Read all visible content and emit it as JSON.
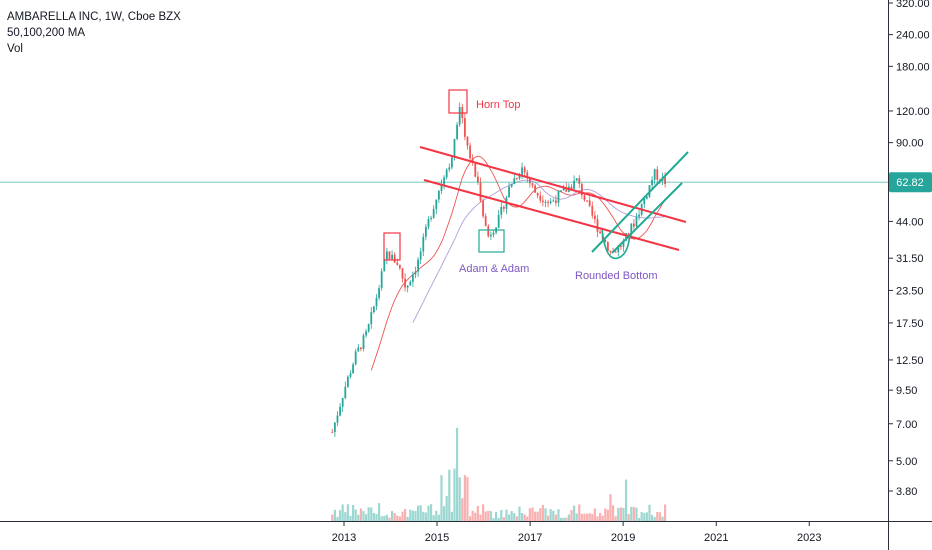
{
  "legend": {
    "symbol_line": "AMBARELLA INC, 1W, Cboe BZX",
    "ma_line": "50,100,200 MA",
    "vol_line": "Vol"
  },
  "price_badge": "62.82",
  "colors": {
    "up": "#26a69a",
    "down": "#ef5350",
    "ma50": "#ef5350",
    "ma100": "#b39ddb",
    "trend_red": "#f23645",
    "trend_green": "#22ab94",
    "price_line": "#26a69a",
    "annotation_red": "#f23645",
    "annotation_purple": "#7e57c2"
  },
  "chart_data": {
    "type": "candlestick",
    "title": "AMBARELLA INC, 1W, Cboe BZX",
    "yscale": "log",
    "y_ticks": [
      "320.00",
      "240.00",
      "180.00",
      "120.00",
      "90.00",
      "44.00",
      "31.50",
      "23.50",
      "17.50",
      "12.50",
      "9.50",
      "7.00",
      "5.00",
      "3.80"
    ],
    "x_ticks": [
      "2013",
      "2015",
      "2017",
      "2019",
      "2021",
      "2023"
    ],
    "last_price": 62.82,
    "indicators": [
      "MA 50",
      "MA 100",
      "MA 200",
      "Volume"
    ],
    "price_path": [
      {
        "date": "2012-10",
        "price": 6.5
      },
      {
        "date": "2013-01",
        "price": 9.5
      },
      {
        "date": "2013-04",
        "price": 13
      },
      {
        "date": "2013-07",
        "price": 16
      },
      {
        "date": "2013-10",
        "price": 24
      },
      {
        "date": "2013-12",
        "price": 33
      },
      {
        "date": "2014-03",
        "price": 30
      },
      {
        "date": "2014-05",
        "price": 24
      },
      {
        "date": "2014-08",
        "price": 30
      },
      {
        "date": "2014-11",
        "price": 45
      },
      {
        "date": "2015-02",
        "price": 62
      },
      {
        "date": "2015-05",
        "price": 80
      },
      {
        "date": "2015-07",
        "price": 122
      },
      {
        "date": "2015-09",
        "price": 85
      },
      {
        "date": "2015-12",
        "price": 58
      },
      {
        "date": "2016-02",
        "price": 38
      },
      {
        "date": "2016-05",
        "price": 45
      },
      {
        "date": "2016-08",
        "price": 62
      },
      {
        "date": "2016-11",
        "price": 72
      },
      {
        "date": "2017-02",
        "price": 58
      },
      {
        "date": "2017-06",
        "price": 52
      },
      {
        "date": "2017-10",
        "price": 58
      },
      {
        "date": "2018-01",
        "price": 64
      },
      {
        "date": "2018-04",
        "price": 50
      },
      {
        "date": "2018-07",
        "price": 40
      },
      {
        "date": "2018-10",
        "price": 33
      },
      {
        "date": "2019-01",
        "price": 36
      },
      {
        "date": "2019-04",
        "price": 44
      },
      {
        "date": "2019-07",
        "price": 56
      },
      {
        "date": "2019-09",
        "price": 68
      },
      {
        "date": "2019-12",
        "price": 62.82
      }
    ],
    "annotations": [
      {
        "text": "Horn Top",
        "color": "red"
      },
      {
        "text": "Adam & Adam",
        "color": "purple"
      },
      {
        "text": "Rounded Bottom",
        "color": "purple"
      }
    ]
  }
}
